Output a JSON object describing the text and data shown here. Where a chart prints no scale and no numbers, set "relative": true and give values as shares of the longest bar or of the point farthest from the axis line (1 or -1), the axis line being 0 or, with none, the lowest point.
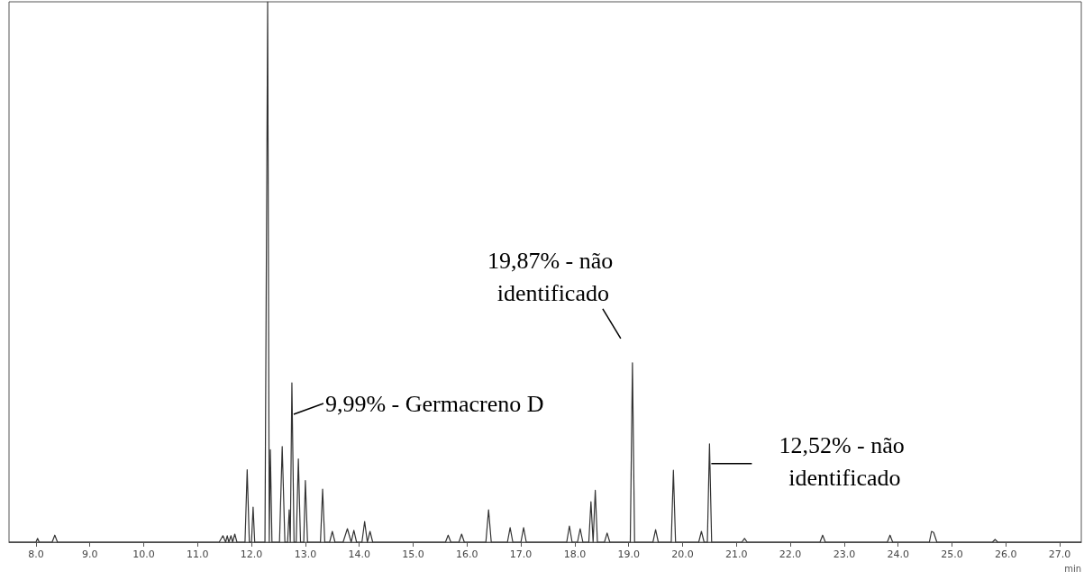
{
  "chart_data": {
    "type": "line",
    "relative": true,
    "xlabel": "min",
    "color": "#333333",
    "marker": "none",
    "line_style": "solid",
    "grid": false,
    "xlim": [
      7.5,
      27.4
    ],
    "xticks": [
      {
        "value": 8,
        "label": "8.0"
      },
      {
        "value": 9,
        "label": "9.0"
      },
      {
        "value": 10,
        "label": "10.0"
      },
      {
        "value": 11,
        "label": "11.0"
      },
      {
        "value": 12,
        "label": "12.0"
      },
      {
        "value": 13,
        "label": "13.0"
      },
      {
        "value": 14,
        "label": "14.0"
      },
      {
        "value": 15,
        "label": "15.0"
      },
      {
        "value": 16,
        "label": "16.0"
      },
      {
        "value": 17,
        "label": "17.0"
      },
      {
        "value": 18,
        "label": "18.0"
      },
      {
        "value": 19,
        "label": "19.0"
      },
      {
        "value": 20,
        "label": "20.0"
      },
      {
        "value": 21,
        "label": "21.0"
      },
      {
        "value": 22,
        "label": "22.0"
      },
      {
        "value": 23,
        "label": "23.0"
      },
      {
        "value": 24,
        "label": "24.0"
      },
      {
        "value": 25,
        "label": "25.0"
      },
      {
        "value": 26,
        "label": "26.0"
      },
      {
        "value": 27,
        "label": "27.0"
      }
    ],
    "x": [
      7.5,
      8.0,
      8.03,
      8.06,
      8.3,
      8.35,
      8.4,
      11.4,
      11.47,
      11.52,
      11.55,
      11.58,
      11.62,
      11.65,
      11.69,
      11.73,
      11.88,
      11.92,
      11.96,
      12.0,
      12.03,
      12.06,
      12.25,
      12.3,
      12.33,
      12.35,
      12.38,
      12.52,
      12.57,
      12.62,
      12.67,
      12.7,
      12.72,
      12.75,
      12.79,
      12.83,
      12.87,
      12.91,
      12.97,
      13.0,
      13.04,
      13.28,
      13.32,
      13.36,
      13.45,
      13.5,
      13.55,
      13.7,
      13.78,
      13.85,
      13.9,
      13.95,
      14.05,
      14.1,
      14.15,
      14.2,
      14.25,
      14.3,
      15.6,
      15.65,
      15.7,
      15.85,
      15.9,
      15.95,
      16.35,
      16.4,
      16.45,
      16.75,
      16.8,
      16.85,
      17.0,
      17.05,
      17.1,
      17.85,
      17.9,
      17.95,
      18.05,
      18.1,
      18.15,
      18.26,
      18.3,
      18.34,
      18.38,
      18.42,
      18.55,
      18.6,
      18.65,
      19.03,
      19.07,
      19.11,
      19.45,
      19.5,
      19.55,
      19.79,
      19.83,
      19.87,
      20.3,
      20.35,
      20.4,
      20.46,
      20.5,
      20.54,
      21.1,
      21.15,
      21.2,
      22.55,
      22.6,
      22.65,
      23.8,
      23.85,
      23.9,
      24.58,
      24.62,
      24.66,
      24.72,
      25.75,
      25.8,
      25.85,
      27.4
    ],
    "values": [
      0,
      0,
      0.007,
      0,
      0,
      0.013,
      0,
      0,
      0.012,
      0,
      0.012,
      0,
      0.012,
      0,
      0.015,
      0,
      0,
      0.134,
      0,
      0,
      0.065,
      0,
      0,
      1.0,
      0,
      0.171,
      0,
      0,
      0.177,
      0,
      0,
      0.06,
      0,
      0.295,
      0,
      0,
      0.154,
      0,
      0,
      0.114,
      0,
      0,
      0.098,
      0,
      0,
      0.02,
      0,
      0,
      0.025,
      0,
      0.022,
      0,
      0,
      0.038,
      0,
      0.02,
      0,
      0,
      0,
      0.013,
      0,
      0,
      0.015,
      0,
      0,
      0.06,
      0,
      0,
      0.027,
      0,
      0,
      0.027,
      0,
      0,
      0.03,
      0,
      0,
      0.025,
      0,
      0,
      0.075,
      0,
      0.096,
      0,
      0,
      0.017,
      0,
      0,
      0.332,
      0,
      0,
      0.023,
      0,
      0,
      0.133,
      0,
      0,
      0.02,
      0,
      0,
      0.182,
      0,
      0,
      0.007,
      0,
      0,
      0.013,
      0,
      0,
      0.013,
      0,
      0,
      0.02,
      0.018,
      0,
      0,
      0.005,
      0,
      0
    ],
    "annotations": [
      {
        "text": "9,99% - Germacreno D",
        "x": 12.75,
        "y": 0.295
      },
      {
        "text": "19,87% - não identificado",
        "x": 19.07,
        "y": 0.332
      },
      {
        "text": "12,52% - não identificado",
        "x": 20.5,
        "y": 0.182
      }
    ]
  }
}
